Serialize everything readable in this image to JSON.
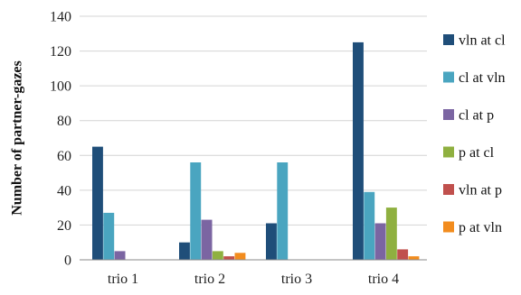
{
  "chart_data": {
    "type": "bar",
    "title": "",
    "xlabel": "",
    "ylabel": "Number of partner-gazes",
    "ylim": [
      0,
      140
    ],
    "yticks": [
      0,
      20,
      40,
      60,
      80,
      100,
      120,
      140
    ],
    "grid": true,
    "legend_position": "right",
    "categories": [
      "trio 1",
      "trio 2",
      "trio 3",
      "trio 4"
    ],
    "series": [
      {
        "name": "vln at cl",
        "color": "#1f4e79",
        "values": [
          65,
          10,
          21,
          125
        ]
      },
      {
        "name": "cl at vln",
        "color": "#4aa5c0",
        "values": [
          27,
          56,
          56,
          39
        ]
      },
      {
        "name": "cl at p",
        "color": "#7b65a2",
        "values": [
          5,
          23,
          0,
          21
        ]
      },
      {
        "name": "p at cl",
        "color": "#8fb040",
        "values": [
          0,
          5,
          0,
          30
        ]
      },
      {
        "name": "vln at p",
        "color": "#c0504d",
        "values": [
          0,
          2,
          0,
          6
        ]
      },
      {
        "name": "p at vln",
        "color": "#f28c1e",
        "values": [
          0,
          4,
          0,
          2
        ]
      }
    ]
  }
}
